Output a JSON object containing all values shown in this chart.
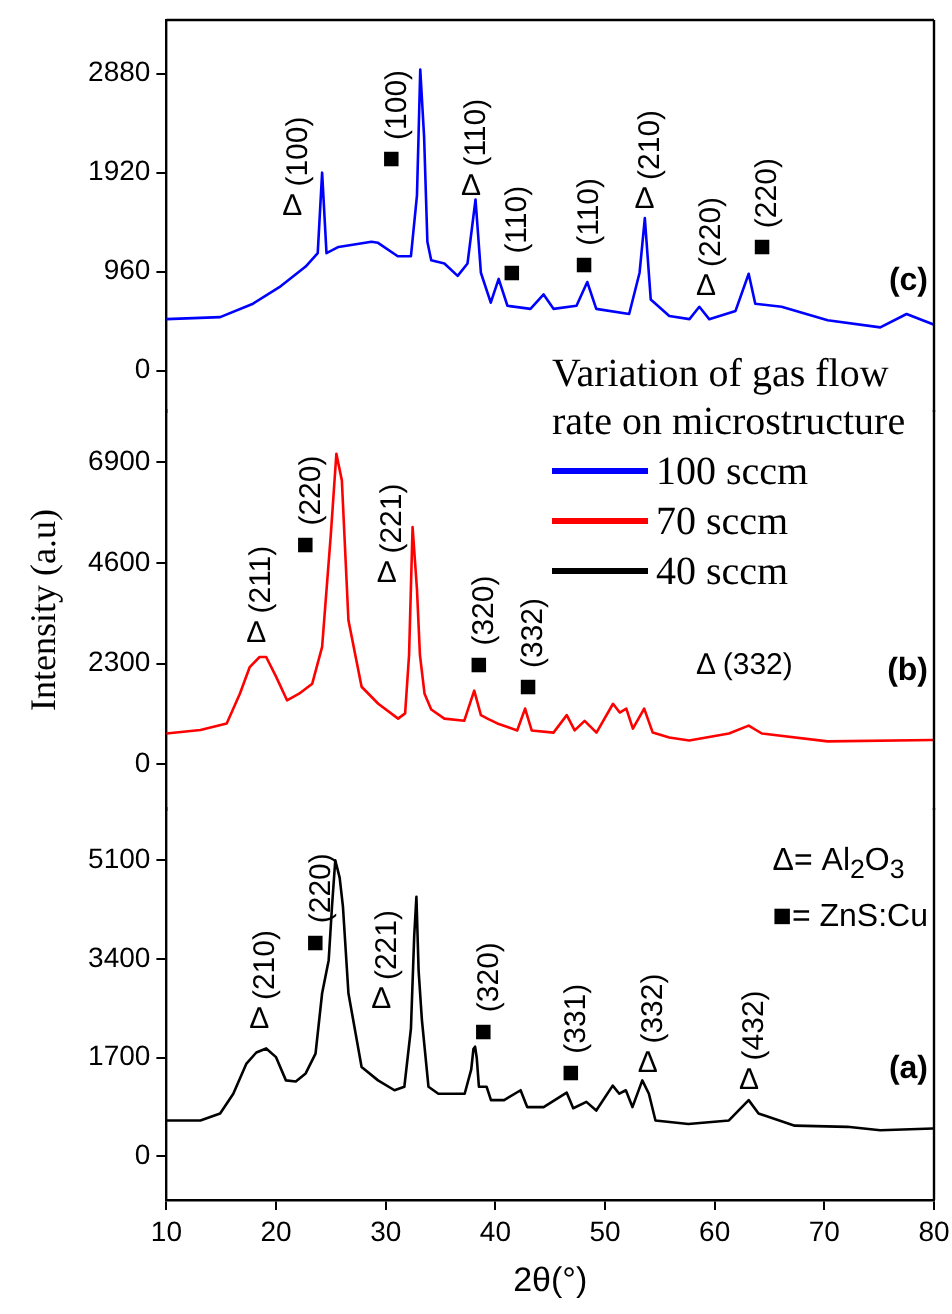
{
  "chart_data": [
    {
      "type": "line",
      "xlim": [
        10,
        80
      ],
      "ylim": [
        -400,
        3400
      ],
      "yticks": [
        0,
        960,
        1920,
        2880
      ],
      "tick_labels": "y",
      "marker": "none",
      "legend": "right",
      "legend_title": "Variation of gas flow rate on microstructure",
      "series": [
        {
          "name": "100 sccm",
          "color": "#0000ff",
          "x": [
            10,
            14.9,
            17.9,
            20.3,
            22.7,
            23.8,
            24.2,
            24.6,
            25.7,
            28.7,
            29.3,
            31.1,
            32.3,
            32.85,
            33.0,
            33.15,
            33.5,
            33.8,
            34.15,
            35.35,
            36.56,
            37.46,
            38.19,
            38.68,
            39.58,
            40.3,
            41.1,
            43.2,
            44.4,
            45.3,
            47.4,
            48.38,
            49.2,
            52.2,
            53.15,
            53.63,
            54.17,
            55.86,
            57.7,
            58.6,
            59.5,
            61.9,
            63.1,
            63.7,
            66.1,
            70.3,
            75.1,
            77.5,
            79.9
          ],
          "values": [
            500,
            520,
            650,
            810,
            1010,
            1140,
            1920,
            1140,
            1200,
            1250,
            1240,
            1110,
            1110,
            1700,
            2300,
            2920,
            2270,
            1250,
            1070,
            1040,
            920,
            1040,
            1660,
            950,
            660,
            890,
            630,
            600,
            740,
            600,
            630,
            860,
            600,
            550,
            950,
            1480,
            690,
            530,
            500,
            620,
            500,
            580,
            940,
            650,
            620,
            490,
            420,
            550,
            450
          ]
        }
      ],
      "annotations": [
        "Δ (100)",
        "■ (100)",
        "Δ (110)",
        "■ (110)",
        "■ (110)",
        "Δ (210)",
        "Δ (220)",
        "■ (220)",
        "(c)"
      ]
    },
    {
      "type": "line",
      "xlim": [
        10,
        80
      ],
      "ylim": [
        -1050,
        8100
      ],
      "yticks": [
        0,
        2300,
        4600,
        6900
      ],
      "tick_labels": "y",
      "marker": "none",
      "ylabel": "Intensity (a.u)",
      "series": [
        {
          "name": "70 sccm",
          "color": "#ff0000",
          "x": [
            10,
            13.1,
            15.5,
            16.7,
            17.6,
            18.5,
            19.1,
            20.0,
            21.0,
            22.1,
            23.3,
            24.2,
            25.0,
            25.5,
            26.0,
            26.6,
            27.8,
            29.32,
            31.13,
            31.77,
            32.13,
            32.45,
            32.85,
            33.12,
            33.54,
            34.15,
            35.35,
            37.16,
            38.07,
            38.68,
            39.28,
            40.18,
            41.99,
            42.71,
            43.31,
            45.3,
            46.51,
            47.23,
            48.14,
            49.22,
            50.73,
            51.34,
            51.94,
            52.54,
            53.57,
            54.35,
            55.86,
            57.67,
            61.3,
            63.1,
            64.3,
            70.3,
            79.9
          ],
          "values": [
            700,
            780,
            930,
            1610,
            2220,
            2450,
            2450,
            2000,
            1460,
            1610,
            1840,
            2680,
            5270,
            7100,
            6490,
            3290,
            1770,
            1380,
            1040,
            1160,
            2500,
            5420,
            4000,
            2500,
            1610,
            1250,
            1040,
            990,
            1680,
            1120,
            1040,
            930,
            770,
            1270,
            770,
            720,
            1120,
            770,
            990,
            720,
            1380,
            1180,
            1270,
            810,
            1270,
            720,
            610,
            540,
            700,
            880,
            700,
            520,
            550
          ]
        }
      ],
      "annotations": [
        "Δ (211)",
        "■ (220)",
        "Δ (221)",
        "■ (320)",
        "■ (332)",
        "Δ (332)",
        "(b)"
      ]
    },
    {
      "type": "line",
      "xlim": [
        10,
        80
      ],
      "ylim": [
        -750,
        6000
      ],
      "xticks": [
        10,
        20,
        30,
        40,
        50,
        60,
        70,
        80
      ],
      "yticks": [
        0,
        1700,
        3400,
        5100
      ],
      "marker": "none",
      "xlabel": "2θ(°)",
      "series": [
        {
          "name": "40 sccm",
          "color": "#000000",
          "x": [
            10,
            13.1,
            14.9,
            16.1,
            17.3,
            18.2,
            19.1,
            20.0,
            20.9,
            21.8,
            22.7,
            23.6,
            24.2,
            24.8,
            25.1,
            25.4,
            25.8,
            26.1,
            26.6,
            27.8,
            29.3,
            30.8,
            31.7,
            32.3,
            32.6,
            32.8,
            33.0,
            33.3,
            33.9,
            34.8,
            37.2,
            37.8,
            38.0,
            38.15,
            38.3,
            38.5,
            39.2,
            39.6,
            40.8,
            42.3,
            42.9,
            44.4,
            46.5,
            47.1,
            48.3,
            49.2,
            50.7,
            51.3,
            51.9,
            52.5,
            53.4,
            54.0,
            54.6,
            57.6,
            61.3,
            63.1,
            64.0,
            67.3,
            72.1,
            75.1,
            79.9
          ],
          "values": [
            620,
            620,
            740,
            1080,
            1600,
            1790,
            1860,
            1710,
            1310,
            1290,
            1430,
            1770,
            2810,
            3380,
            4300,
            5100,
            4800,
            4300,
            2810,
            1540,
            1310,
            1140,
            1200,
            2200,
            3800,
            4470,
            3200,
            2350,
            1200,
            1080,
            1080,
            1500,
            1850,
            1890,
            1700,
            1200,
            1200,
            970,
            970,
            1140,
            850,
            850,
            1100,
            830,
            940,
            790,
            1220,
            1080,
            1140,
            850,
            1310,
            1080,
            620,
            560,
            620,
            970,
            740,
            530,
            510,
            450,
            480
          ]
        }
      ],
      "annotations": [
        "Δ (210)",
        "■ (220)",
        "Δ (221)",
        "■ (320)",
        "■ (331)",
        "Δ (332)",
        "Δ (432)",
        "Δ= Al$_{2}$O$_{3}$",
        "■= ZnS:Cu",
        "(a)"
      ]
    }
  ]
}
